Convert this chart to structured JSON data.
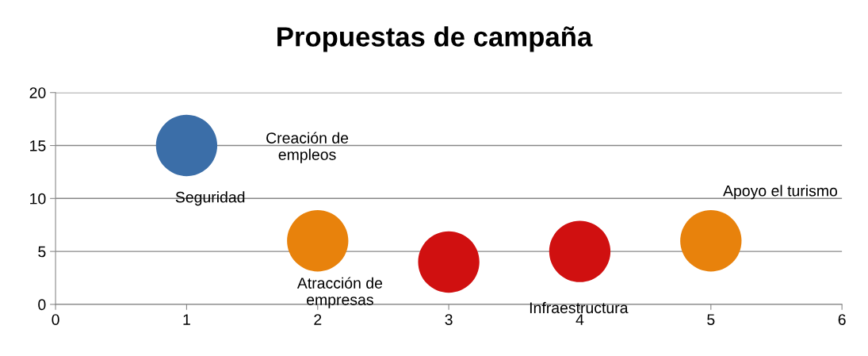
{
  "chart_data": {
    "type": "bubble",
    "title": "Propuestas de campaña",
    "x": [
      1,
      2,
      3,
      4,
      5
    ],
    "values": [
      15,
      6,
      4,
      5,
      6
    ],
    "sizes": [
      1,
      1,
      1,
      1,
      1
    ],
    "colors": [
      "#3b6ea8",
      "#e8820c",
      "#d01010",
      "#d01010",
      "#e8820c"
    ],
    "xlim": [
      0,
      6
    ],
    "xticks": [
      0,
      1,
      2,
      3,
      4,
      5,
      6
    ],
    "ylim": [
      0,
      20
    ],
    "yticks": [
      0,
      5,
      10,
      15,
      20
    ],
    "grid": "y",
    "legend": false,
    "annotations": [
      "Creación de\nempleos"
    ],
    "value_labels": [
      "Seguridad",
      "Atracción de\nempresas",
      null,
      "Infraestructura",
      "Apoyo el turismo"
    ]
  }
}
